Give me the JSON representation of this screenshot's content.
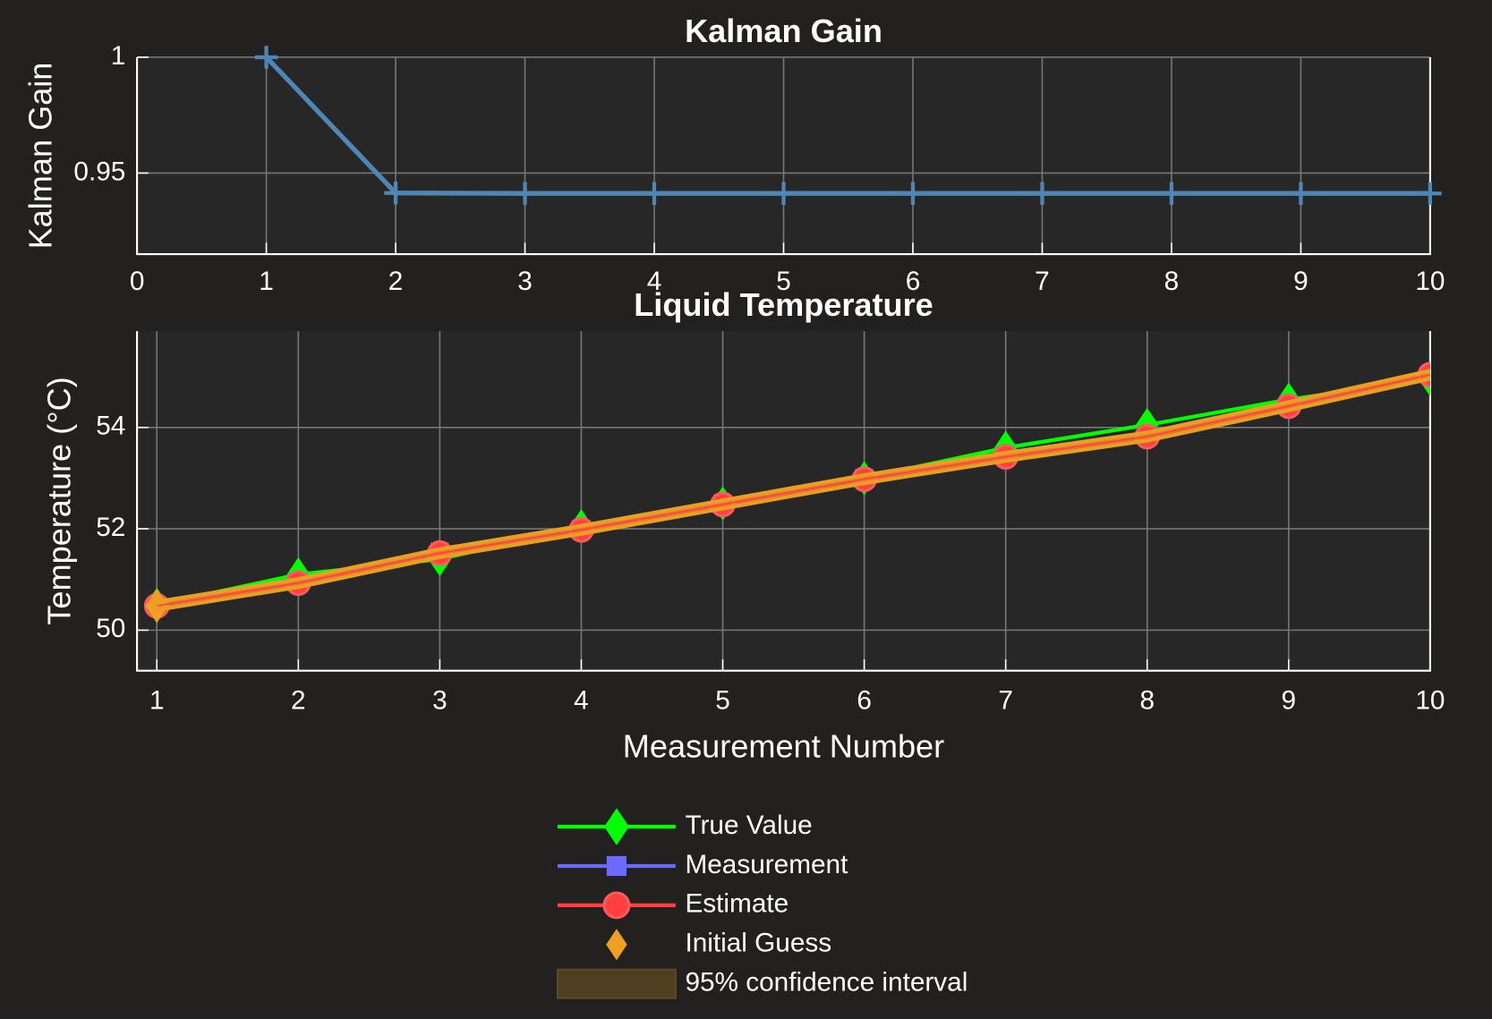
{
  "chart_data": [
    {
      "type": "line",
      "title": "Kalman Gain",
      "ylabel": "Kalman Gain",
      "x": [
        1,
        2,
        3,
        4,
        5,
        6,
        7,
        8,
        9,
        10
      ],
      "values": [
        1,
        0.9414,
        0.9412,
        0.9412,
        0.9412,
        0.9412,
        0.9412,
        0.9412,
        0.9412,
        0.9412
      ],
      "color": "#4f86b3",
      "marker": "plus",
      "xlim": [
        0,
        10
      ],
      "xticks": [
        0,
        1,
        2,
        3,
        4,
        5,
        6,
        7,
        8,
        9,
        10
      ],
      "ylim": [
        0.915,
        1
      ],
      "yticks": [
        0.95,
        1
      ],
      "grid": true
    },
    {
      "type": "line",
      "title": "Liquid Temperature",
      "xlabel": "Measurement Number",
      "ylabel": "Temperature (°C)",
      "x": [
        1,
        2,
        3,
        4,
        5,
        6,
        7,
        8,
        9,
        10
      ],
      "series": [
        {
          "name": "True Value",
          "color": "#00ff00",
          "marker": "diamond",
          "line": true,
          "values": [
            50.5,
            51.1,
            51.4,
            52.05,
            52.5,
            53.0,
            53.6,
            54.05,
            54.55,
            54.95
          ]
        },
        {
          "name": "Measurement",
          "color": "#6b6bff",
          "marker": "square",
          "line": true,
          "values": [
            50.48,
            50.95,
            51.55,
            52.0,
            52.5,
            53.0,
            53.45,
            53.85,
            54.45,
            55.05
          ]
        },
        {
          "name": "Estimate",
          "color": "#ff4040",
          "marker": "circle",
          "line": true,
          "values": [
            50.48,
            50.93,
            51.52,
            51.98,
            52.48,
            52.98,
            53.42,
            53.82,
            54.42,
            55.04
          ]
        },
        {
          "name": "Initial Guess",
          "color": "#f0a020",
          "marker": "diamond",
          "line": false,
          "values": [
            50.48,
            null,
            null,
            null,
            null,
            null,
            null,
            null,
            null,
            null
          ]
        }
      ],
      "confidence_interval": {
        "name": "95% confidence interval",
        "color": "#e8a020",
        "lower": [
          50.4,
          50.85,
          51.44,
          51.9,
          52.4,
          52.9,
          53.34,
          53.74,
          54.34,
          54.96
        ],
        "upper": [
          50.56,
          51.01,
          51.6,
          52.06,
          52.56,
          53.06,
          53.5,
          53.9,
          54.5,
          55.12
        ]
      },
      "xlim": [
        0.86,
        10
      ],
      "xticks": [
        1,
        2,
        3,
        4,
        5,
        6,
        7,
        8,
        9,
        10
      ],
      "ylim": [
        49.2,
        55.9
      ],
      "yticks": [
        50,
        52,
        54
      ],
      "grid": true,
      "legend": "lower center"
    }
  ]
}
